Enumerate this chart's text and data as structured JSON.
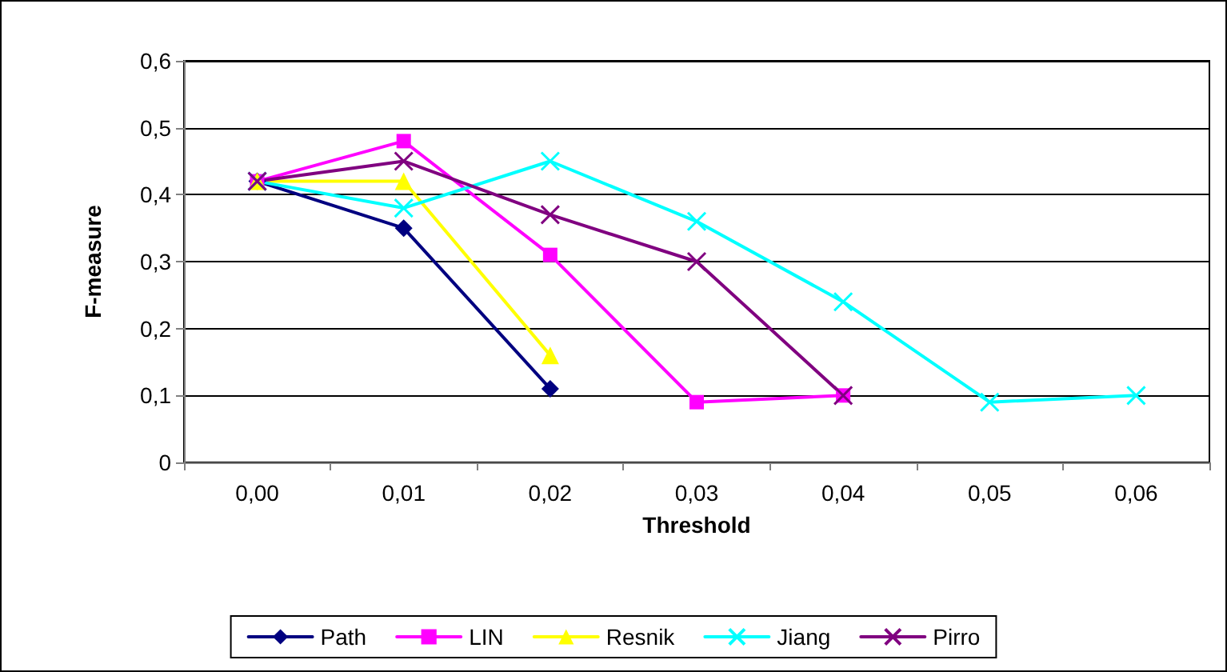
{
  "chart_data": {
    "type": "line",
    "xlabel": "Threshold",
    "ylabel": "F-measure",
    "categories": [
      "0,00",
      "0,01",
      "0,02",
      "0,03",
      "0,04",
      "0,05",
      "0,06"
    ],
    "series": [
      {
        "name": "Path",
        "color": "#000080",
        "marker": "diamond",
        "values": [
          0.42,
          0.35,
          0.11,
          null,
          null,
          null,
          null
        ]
      },
      {
        "name": "LIN",
        "color": "#ff00ff",
        "marker": "square",
        "values": [
          0.42,
          0.48,
          0.31,
          0.09,
          0.1,
          null,
          null
        ]
      },
      {
        "name": "Resnik",
        "color": "#ffff00",
        "marker": "triangle",
        "values": [
          0.42,
          0.42,
          0.16,
          null,
          null,
          null,
          null
        ]
      },
      {
        "name": "Jiang",
        "color": "#00ffff",
        "marker": "cross",
        "values": [
          0.42,
          0.38,
          0.45,
          0.36,
          0.24,
          0.09,
          0.1
        ]
      },
      {
        "name": "Pirro",
        "color": "#800080",
        "marker": "cross",
        "values": [
          0.42,
          0.45,
          0.37,
          0.3,
          0.1,
          null,
          null
        ]
      }
    ],
    "ylim": [
      0,
      0.6
    ],
    "yticks": [
      0,
      {
        "value": 0.1,
        "label": "0,1"
      },
      {
        "value": 0.2,
        "label": "0,2"
      },
      {
        "value": 0.3,
        "label": "0,3"
      },
      {
        "value": 0.4,
        "label": "0,4"
      },
      {
        "value": 0.5,
        "label": "0,5"
      },
      {
        "value": 0.6,
        "label": "0,6"
      }
    ],
    "grid": "y",
    "legend": "bottom",
    "line_style": "solid"
  }
}
